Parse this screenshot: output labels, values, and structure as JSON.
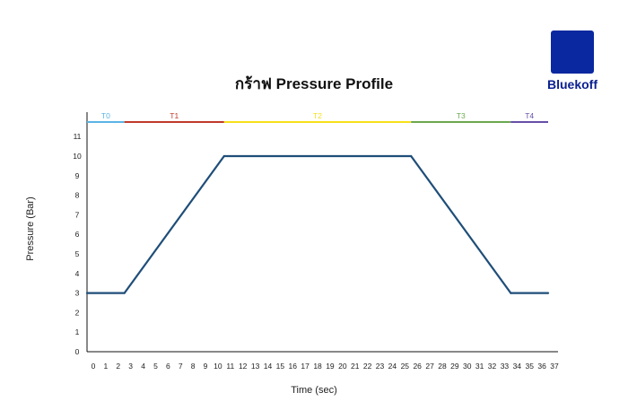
{
  "brand": {
    "name": "Bluekoff",
    "logo_color": "#0a28a0"
  },
  "chart_data": {
    "type": "line",
    "title": "กร้าฟ Pressure Profile",
    "xlabel": "Time (sec)",
    "ylabel": "Pressure (Bar)",
    "xlim": [
      0,
      37
    ],
    "ylim": [
      0,
      12
    ],
    "xticks": [
      0,
      1,
      2,
      3,
      4,
      5,
      6,
      7,
      8,
      9,
      10,
      11,
      12,
      13,
      14,
      15,
      16,
      17,
      18,
      19,
      20,
      21,
      22,
      23,
      24,
      25,
      26,
      27,
      28,
      29,
      30,
      31,
      32,
      33,
      34,
      35,
      36,
      37
    ],
    "yticks": [
      0,
      1,
      2,
      3,
      4,
      5,
      6,
      7,
      8,
      9,
      10,
      11
    ],
    "grid": false,
    "series": [
      {
        "color": "#1f4e79",
        "x": [
          0,
          3,
          11,
          26,
          34,
          37
        ],
        "y": [
          3,
          3,
          10,
          10,
          3,
          3
        ]
      }
    ],
    "phases": [
      {
        "label": "T0",
        "start": 0,
        "end": 3,
        "color": "#5ab4e6"
      },
      {
        "label": "T1",
        "start": 3,
        "end": 11,
        "color": "#c0392b"
      },
      {
        "label": "T2",
        "start": 11,
        "end": 26,
        "color": "#f7e01a"
      },
      {
        "label": "T3",
        "start": 26,
        "end": 34,
        "color": "#6aa84f"
      },
      {
        "label": "T4",
        "start": 34,
        "end": 37,
        "color": "#674ea7"
      }
    ]
  }
}
